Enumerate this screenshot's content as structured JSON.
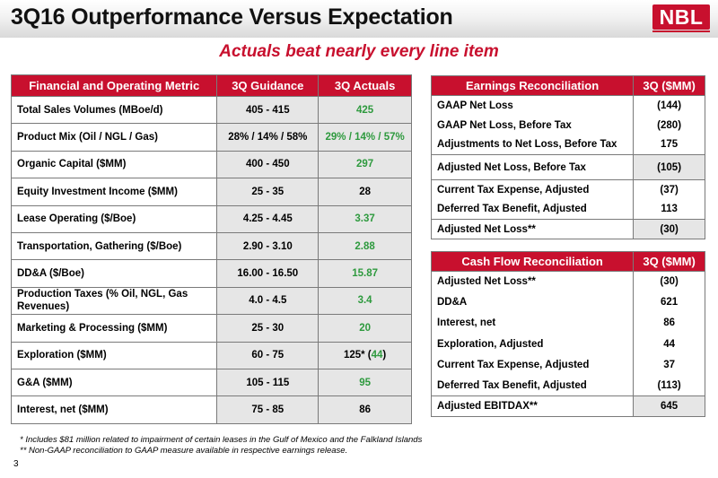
{
  "header": {
    "title": "3Q16 Outperformance Versus Expectation",
    "logo_text": "NBL"
  },
  "subtitle": "Actuals beat nearly every line item",
  "colors": {
    "accent": "#c8102e",
    "beat": "#2e9a3e"
  },
  "ops_table": {
    "headers": [
      "Financial and Operating Metric",
      "3Q Guidance",
      "3Q Actuals"
    ],
    "rows": [
      {
        "metric": "Total Sales Volumes (MBoe/d)",
        "guidance": "405 - 415",
        "actual": "425"
      },
      {
        "metric": "Product Mix (Oil / NGL / Gas)",
        "guidance": "28% / 14% / 58%",
        "actual": "29% / 14% / 57%"
      },
      {
        "metric": "Organic Capital ($MM)",
        "guidance": "400 - 450",
        "actual": "297"
      },
      {
        "metric": "Equity Investment Income ($MM)",
        "guidance": "25 - 35",
        "actual": "28"
      },
      {
        "metric": "Lease Operating ($/Boe)",
        "guidance": "4.25 - 4.45",
        "actual": "3.37"
      },
      {
        "metric": "Transportation, Gathering ($/Boe)",
        "guidance": "2.90 - 3.10",
        "actual": "2.88"
      },
      {
        "metric": "DD&A ($/Boe)",
        "guidance": "16.00 - 16.50",
        "actual": "15.87"
      },
      {
        "metric": "Production Taxes (% Oil, NGL, Gas Revenues)",
        "guidance": "4.0 - 4.5",
        "actual": "3.4"
      },
      {
        "metric": "Marketing & Processing ($MM)",
        "guidance": "25 - 30",
        "actual": "20"
      },
      {
        "metric": "Exploration ($MM)",
        "guidance": "60 - 75",
        "actual_prefix": "125* (",
        "actual": "44",
        "actual_suffix": ")"
      },
      {
        "metric": "G&A ($MM)",
        "guidance": "105 - 115",
        "actual": "95"
      },
      {
        "metric": "Interest, net ($MM)",
        "guidance": "75 - 85",
        "actual": "86"
      }
    ]
  },
  "earnings_table": {
    "headers": [
      "Earnings Reconciliation",
      "3Q ($MM)"
    ],
    "rows": [
      {
        "label": "GAAP Net Loss",
        "value": "(144)"
      },
      {
        "label": "GAAP Net Loss, Before Tax",
        "value": "(280)"
      },
      {
        "label": "Adjustments to Net Loss, Before Tax",
        "value": "175"
      },
      {
        "label": "Adjusted Net Loss, Before Tax",
        "value": "(105)"
      },
      {
        "label": "Current Tax Expense, Adjusted",
        "value": "(37)"
      },
      {
        "label": "Deferred Tax Benefit, Adjusted",
        "value": "113"
      },
      {
        "label": "Adjusted Net Loss**",
        "value": "(30)"
      }
    ]
  },
  "cash_table": {
    "headers": [
      "Cash Flow Reconciliation",
      "3Q ($MM)"
    ],
    "rows": [
      {
        "label": "Adjusted Net Loss**",
        "value": "(30)"
      },
      {
        "label": "DD&A",
        "value": "621"
      },
      {
        "label": "Interest, net",
        "value": "86"
      },
      {
        "label": "Exploration, Adjusted",
        "value": "44"
      },
      {
        "label": "Current Tax Expense, Adjusted",
        "value": "37"
      },
      {
        "label": "Deferred Tax Benefit, Adjusted",
        "value": "(113)"
      },
      {
        "label": "Adjusted EBITDAX**",
        "value": "645"
      }
    ]
  },
  "footnotes": [
    "* Includes $81 million related to impairment of certain leases in the Gulf of Mexico and the Falkland Islands",
    "** Non-GAAP reconciliation to GAAP measure available in respective earnings release."
  ],
  "page_number": "3"
}
